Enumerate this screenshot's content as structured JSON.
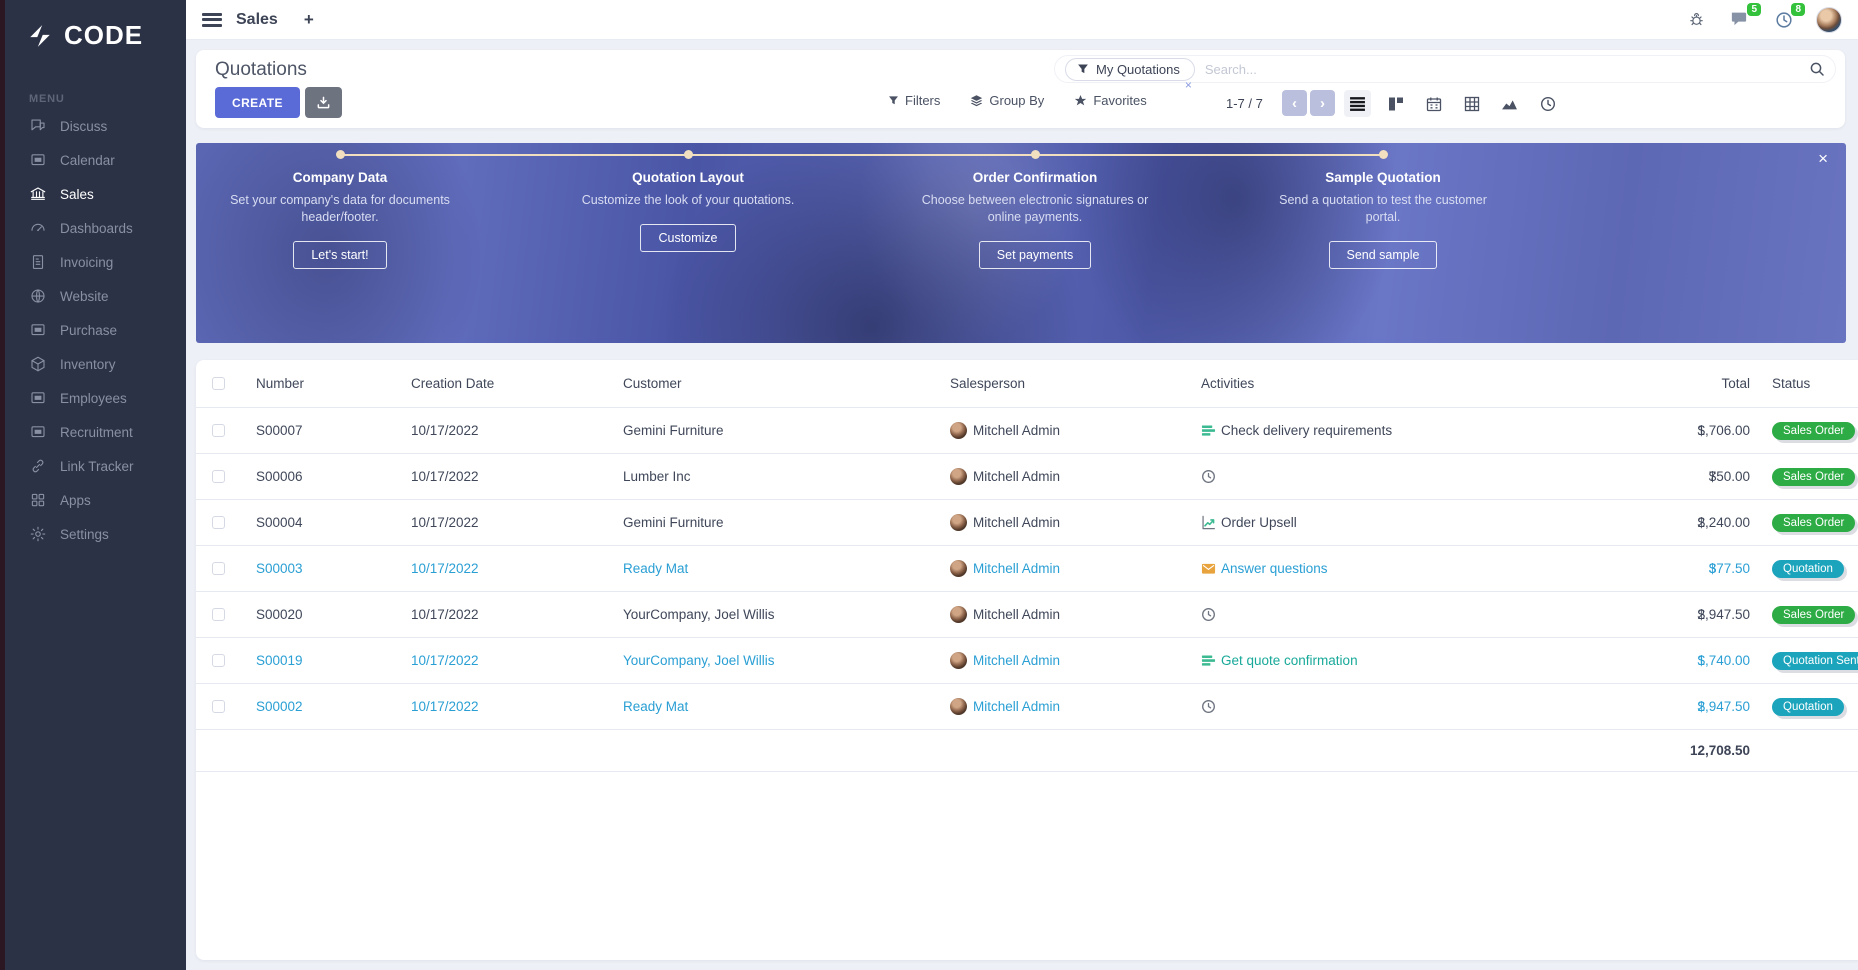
{
  "brand": {
    "logo_text": "CODE",
    "menu_label": "MENU"
  },
  "sidebar": {
    "items": [
      {
        "id": "discuss",
        "label": "Discuss",
        "icon": "chat-bubbles-icon",
        "active": false
      },
      {
        "id": "calendar",
        "label": "Calendar",
        "icon": "image-frame-icon",
        "active": false
      },
      {
        "id": "sales",
        "label": "Sales",
        "icon": "bank-icon",
        "active": true
      },
      {
        "id": "dashboards",
        "label": "Dashboards",
        "icon": "gauge-icon",
        "active": false
      },
      {
        "id": "invoicing",
        "label": "Invoicing",
        "icon": "invoice-doc-icon",
        "active": false
      },
      {
        "id": "website",
        "label": "Website",
        "icon": "globe-icon",
        "active": false
      },
      {
        "id": "purchase",
        "label": "Purchase",
        "icon": "image-frame-icon",
        "active": false
      },
      {
        "id": "inventory",
        "label": "Inventory",
        "icon": "box-icon",
        "active": false
      },
      {
        "id": "employees",
        "label": "Employees",
        "icon": "image-frame-icon",
        "active": false
      },
      {
        "id": "recruitment",
        "label": "Recruitment",
        "icon": "image-frame-icon",
        "active": false
      },
      {
        "id": "linktracker",
        "label": "Link Tracker",
        "icon": "chain-link-icon",
        "active": false
      },
      {
        "id": "apps",
        "label": "Apps",
        "icon": "grid-squares-icon",
        "active": false
      },
      {
        "id": "settings",
        "label": "Settings",
        "icon": "gear-icon",
        "active": false
      }
    ]
  },
  "topbar": {
    "title": "Sales",
    "plus": "+",
    "messages_badge": "5",
    "activities_badge": "8"
  },
  "control_panel": {
    "title": "Quotations",
    "create_label": "CREATE",
    "search": {
      "facet": "My Quotations",
      "facet_remove": "×",
      "placeholder": "Search..."
    },
    "filters_label": "Filters",
    "groupby_label": "Group By",
    "favorites_label": "Favorites",
    "pager": {
      "range": "1-7",
      "separator": "/",
      "total": "7",
      "prev": "‹",
      "next": "›"
    }
  },
  "banner": {
    "close": "×",
    "steps": [
      {
        "title": "Company Data",
        "desc": "Set your company's data for documents header/footer.",
        "button": "Let's start!"
      },
      {
        "title": "Quotation Layout",
        "desc": "Customize the look of your quotations.",
        "button": "Customize"
      },
      {
        "title": "Order Confirmation",
        "desc": "Choose between electronic signatures or online payments.",
        "button": "Set payments"
      },
      {
        "title": "Sample Quotation",
        "desc": "Send a quotation to test the customer portal.",
        "button": "Send sample"
      }
    ]
  },
  "table": {
    "columns": [
      "Number",
      "Creation Date",
      "Customer",
      "Salesperson",
      "Activities",
      "Total",
      "Status"
    ],
    "rows": [
      {
        "number": "S00007",
        "date": "10/17/2022",
        "customer": "Gemini Furniture",
        "salesperson": "Mitchell Admin",
        "activity": {
          "icon": "tasks-icon",
          "label": "Check delivery requirements",
          "label_color": "default"
        },
        "currency": "$",
        "total": "1,706.00",
        "status": "Sales Order",
        "status_type": "success",
        "variant": "order"
      },
      {
        "number": "S00006",
        "date": "10/17/2022",
        "customer": "Lumber Inc",
        "salesperson": "Mitchell Admin",
        "activity": {
          "icon": "clock-icon",
          "label": "",
          "label_color": "default"
        },
        "currency": "$",
        "total": "750.00",
        "status": "Sales Order",
        "status_type": "success",
        "variant": "order"
      },
      {
        "number": "S00004",
        "date": "10/17/2022",
        "customer": "Gemini Furniture",
        "salesperson": "Mitchell Admin",
        "activity": {
          "icon": "upsell-icon",
          "label": "Order Upsell",
          "label_color": "default"
        },
        "currency": "$",
        "total": "2,240.00",
        "status": "Sales Order",
        "status_type": "success",
        "variant": "order"
      },
      {
        "number": "S00003",
        "date": "10/17/2022",
        "customer": "Ready Mat",
        "salesperson": "Mitchell Admin",
        "activity": {
          "icon": "envelope-icon",
          "label": "Answer questions",
          "label_color": "blue"
        },
        "currency": "$",
        "total": "377.50",
        "status": "Quotation",
        "status_type": "info",
        "variant": "quotation"
      },
      {
        "number": "S00020",
        "date": "10/17/2022",
        "customer": "YourCompany, Joel Willis",
        "salesperson": "Mitchell Admin",
        "activity": {
          "icon": "clock-icon",
          "label": "",
          "label_color": "default"
        },
        "currency": "$",
        "total": "2,947.50",
        "status": "Sales Order",
        "status_type": "success",
        "variant": "order"
      },
      {
        "number": "S00019",
        "date": "10/17/2022",
        "customer": "YourCompany, Joel Willis",
        "salesperson": "Mitchell Admin",
        "activity": {
          "icon": "tasks-icon",
          "label": "Get quote confirmation",
          "label_color": "teal"
        },
        "currency": "$",
        "total": "1,740.00",
        "status": "Quotation Sent",
        "status_type": "info",
        "variant": "quotation"
      },
      {
        "number": "S00002",
        "date": "10/17/2022",
        "customer": "Ready Mat",
        "salesperson": "Mitchell Admin",
        "activity": {
          "icon": "clock-icon",
          "label": "",
          "label_color": "default"
        },
        "currency": "$",
        "total": "2,947.50",
        "status": "Quotation",
        "status_type": "info",
        "variant": "quotation"
      }
    ],
    "footer_total": "12,708.50"
  },
  "colors": {
    "accent": "#5a6bd8",
    "sidebar_bg": "#2b3245",
    "badge_success": "#2dab44",
    "badge_info": "#1ba4bc",
    "quotation_text": "#2a9fd4",
    "activity_green": "#3cba92",
    "envelope_orange": "#e8a33d",
    "banner_line": "#f2dfc0"
  }
}
